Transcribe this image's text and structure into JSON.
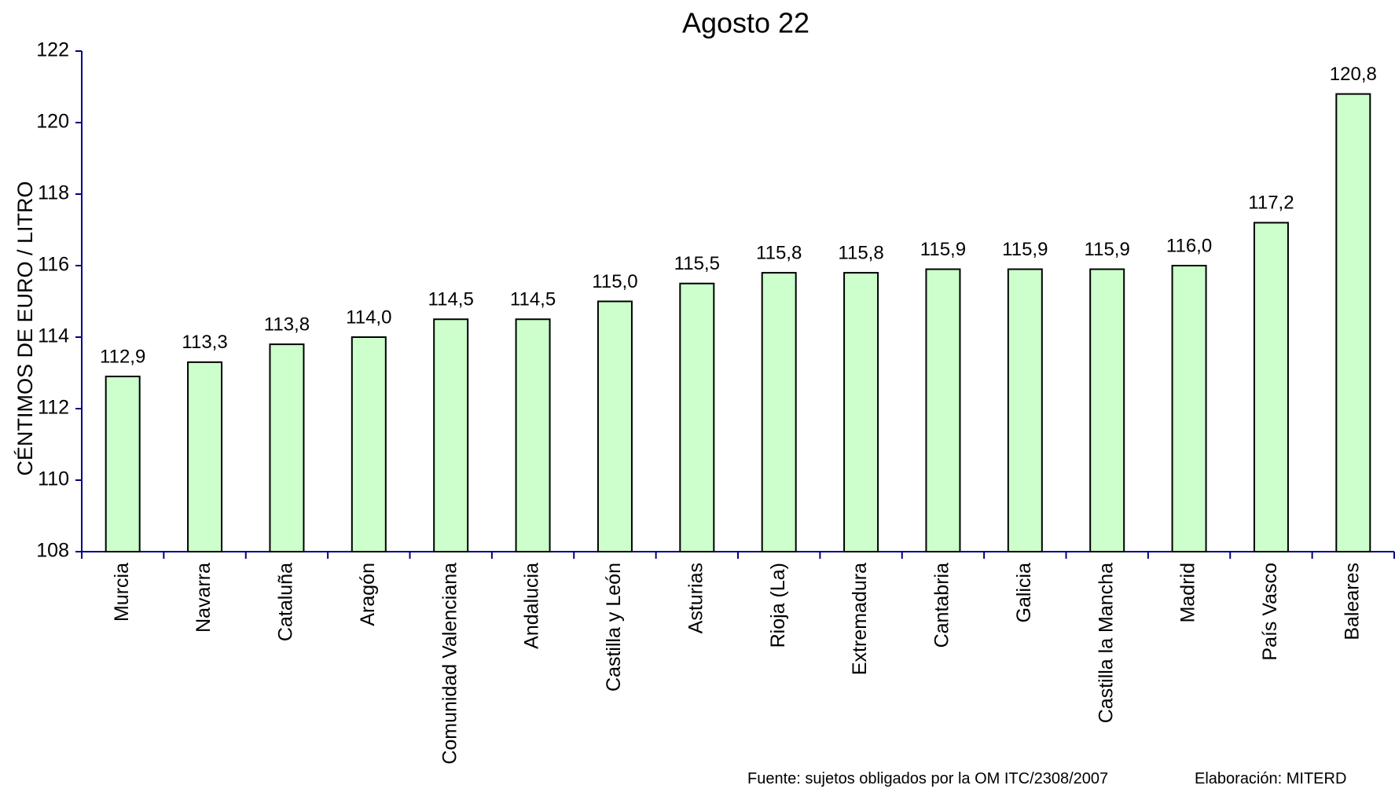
{
  "chart_data": {
    "type": "bar",
    "title": "Agosto 22",
    "y_label": "CÉNTIMOS DE EURO / LITRO",
    "categories": [
      "Murcia",
      "Navarra",
      "Cataluña",
      "Aragón",
      "Comunidad Valenciana",
      "Andalucia",
      "Castilla y León",
      "Asturias",
      "Rioja (La)",
      "Extremadura",
      "Cantabria",
      "Galicia",
      "Castilla la Mancha",
      "Madrid",
      "País Vasco",
      "Baleares"
    ],
    "values": [
      112.9,
      113.3,
      113.8,
      114.0,
      114.5,
      114.5,
      115.0,
      115.5,
      115.8,
      115.8,
      115.9,
      115.9,
      115.9,
      116.0,
      117.2,
      120.8
    ],
    "value_labels": [
      "112,9",
      "113,3",
      "113,8",
      "114,0",
      "114,5",
      "114,5",
      "115,0",
      "115,5",
      "115,8",
      "115,8",
      "115,9",
      "115,9",
      "115,9",
      "116,0",
      "117,2",
      "120,8"
    ],
    "color": "#ccffcc",
    "ylim": [
      108,
      122
    ],
    "yticks": [
      108,
      110,
      112,
      114,
      116,
      118,
      120,
      122
    ],
    "grid": false,
    "source": "Fuente: sujetos obligados por la OM   ITC/2308/2007",
    "credit": "Elaboración: MITERD"
  }
}
